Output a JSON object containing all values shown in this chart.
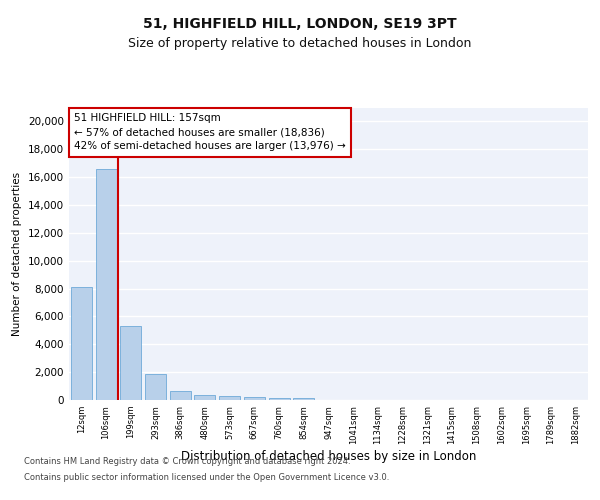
{
  "title1": "51, HIGHFIELD HILL, LONDON, SE19 3PT",
  "title2": "Size of property relative to detached houses in London",
  "xlabel": "Distribution of detached houses by size in London",
  "ylabel": "Number of detached properties",
  "categories": [
    "12sqm",
    "106sqm",
    "199sqm",
    "293sqm",
    "386sqm",
    "480sqm",
    "573sqm",
    "667sqm",
    "760sqm",
    "854sqm",
    "947sqm",
    "1041sqm",
    "1134sqm",
    "1228sqm",
    "1321sqm",
    "1415sqm",
    "1508sqm",
    "1602sqm",
    "1695sqm",
    "1789sqm",
    "1882sqm"
  ],
  "values": [
    8100,
    16600,
    5300,
    1850,
    650,
    350,
    270,
    220,
    175,
    155,
    0,
    0,
    0,
    0,
    0,
    0,
    0,
    0,
    0,
    0,
    0
  ],
  "bar_color": "#b8d0ea",
  "bar_edge_color": "#5a9fd4",
  "vline_x": 1.5,
  "vline_color": "#cc0000",
  "annotation_text": "51 HIGHFIELD HILL: 157sqm\n← 57% of detached houses are smaller (18,836)\n42% of semi-detached houses are larger (13,976) →",
  "annotation_box_color": "#ffffff",
  "annotation_box_edge": "#cc0000",
  "ylim": [
    0,
    21000
  ],
  "yticks": [
    0,
    2000,
    4000,
    6000,
    8000,
    10000,
    12000,
    14000,
    16000,
    18000,
    20000
  ],
  "footer1": "Contains HM Land Registry data © Crown copyright and database right 2024.",
  "footer2": "Contains public sector information licensed under the Open Government Licence v3.0.",
  "bg_color": "#eef2fa",
  "grid_color": "#ffffff",
  "title1_fontsize": 10,
  "title2_fontsize": 9,
  "annot_fontsize": 7.5,
  "xlabel_fontsize": 8.5,
  "ylabel_fontsize": 7.5,
  "xtick_fontsize": 6,
  "ytick_fontsize": 7.5,
  "footer_fontsize": 6
}
